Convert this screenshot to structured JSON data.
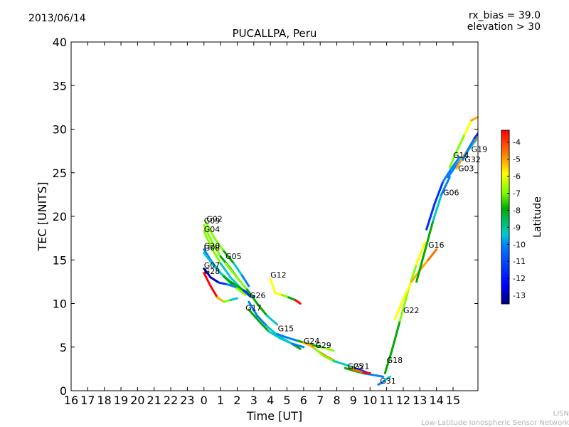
{
  "header": {
    "date": "2013/06/14",
    "rx_bias": "rx_bias = 39.0",
    "elevation": "elevation > 30"
  },
  "footer": {
    "org_short": "LISN",
    "org_long": "Low-Latitude Ionospheric Sensor Network"
  },
  "colors": {
    "axes": "#000000",
    "colormap": [
      "#00007f",
      "#0000ff",
      "#007fff",
      "#00ffff",
      "#7fff7f",
      "#ffff00",
      "#ff7f00",
      "#ff0000",
      "#7f0000"
    ]
  },
  "chart_data": {
    "type": "line",
    "title": "PUCALLPA, Peru",
    "xlabel": "Time [UT]",
    "ylabel": "TEC [UNITS]",
    "xlim": [
      0,
      24.5
    ],
    "ylim": [
      0,
      40
    ],
    "xticks": [
      "16",
      "17",
      "18",
      "19",
      "20",
      "21",
      "22",
      "23",
      "0",
      "1",
      "2",
      "3",
      "4",
      "5",
      "6",
      "7",
      "8",
      "9",
      "10",
      "11",
      "12",
      "13",
      "14",
      "15"
    ],
    "yticks": [
      0,
      5,
      10,
      15,
      20,
      25,
      30,
      35,
      40
    ],
    "colorbar": {
      "label": "Latitude",
      "range": [
        -13.5,
        -3.3
      ],
      "ticks": [
        -4,
        -5,
        -6,
        -7,
        -8,
        -9,
        -10,
        -11,
        -12,
        -13
      ]
    },
    "grid": false,
    "series": [
      {
        "name": "G02",
        "lat": [
          -8,
          -9,
          -10,
          -11
        ],
        "x": [
          8.1,
          8.6,
          9.2,
          9.8,
          10.3,
          10.7
        ],
        "y": [
          19.4,
          17.6,
          16.0,
          14.6,
          13.2,
          12.0
        ]
      },
      {
        "name": "G09",
        "lat": [
          -8,
          -9
        ],
        "x": [
          8.0,
          8.5,
          9.0,
          9.6,
          10.2
        ],
        "y": [
          19.0,
          17.0,
          15.4,
          14.0,
          12.5
        ]
      },
      {
        "name": "G04",
        "lat": [
          -8,
          -10,
          -12
        ],
        "x": [
          8.0,
          8.4,
          9.0,
          9.6,
          10.3,
          10.8
        ],
        "y": [
          18.3,
          16.6,
          14.6,
          13.0,
          11.6,
          10.8
        ]
      },
      {
        "name": "G20",
        "lat": [
          -11,
          -10,
          -9,
          -12
        ],
        "x": [
          8.0,
          8.5,
          9.0,
          9.6,
          10.4,
          11.0
        ],
        "y": [
          16.2,
          14.7,
          13.5,
          12.5,
          11.5,
          10.8
        ]
      },
      {
        "name": "G08",
        "lat": [
          -10,
          -9,
          -8
        ],
        "x": [
          8.0,
          8.6,
          9.2,
          9.8,
          10.5
        ],
        "y": [
          15.8,
          14.3,
          13.1,
          12.0,
          11.0
        ]
      },
      {
        "name": "G05",
        "lat": [
          -8,
          -9,
          -10
        ],
        "x": [
          9.3,
          9.9,
          10.6,
          11.2,
          11.8,
          12.4
        ],
        "y": [
          14.6,
          13.2,
          11.6,
          10.0,
          8.6,
          7.6
        ]
      },
      {
        "name": "G07",
        "lat": [
          -13,
          -12,
          -11
        ],
        "x": [
          8.0,
          8.4,
          8.9,
          9.4,
          9.9
        ],
        "y": [
          14.0,
          13.0,
          12.4,
          12.2,
          11.9
        ]
      },
      {
        "name": "G28",
        "lat": [
          -4,
          -6,
          -8,
          -10
        ],
        "x": [
          8.0,
          8.4,
          8.8,
          9.2,
          9.6,
          10.0
        ],
        "y": [
          13.5,
          12.0,
          10.7,
          10.2,
          10.4,
          10.6
        ]
      },
      {
        "name": "G12",
        "lat": [
          -7,
          -8,
          -9,
          -4
        ],
        "x": [
          12.0,
          12.3,
          12.7,
          13.1,
          13.5,
          13.8
        ],
        "y": [
          12.8,
          11.2,
          11.0,
          10.7,
          10.4,
          10.0
        ]
      },
      {
        "name": "G26",
        "lat": [
          -11,
          -10,
          -9
        ],
        "x": [
          10.7,
          11.2,
          11.8,
          12.4,
          13.1,
          13.8
        ],
        "y": [
          10.2,
          8.6,
          7.4,
          6.4,
          5.6,
          4.8
        ]
      },
      {
        "name": "G17",
        "lat": [
          -9,
          -10,
          -11
        ],
        "x": [
          10.7,
          11.3,
          11.9,
          12.6,
          13.3,
          14.0
        ],
        "y": [
          9.3,
          8.0,
          6.8,
          6.0,
          5.4,
          5.0
        ]
      },
      {
        "name": "G15",
        "lat": [
          -11,
          -9,
          -8
        ],
        "x": [
          12.4,
          13.0,
          13.7,
          14.4,
          15.1,
          15.8
        ],
        "y": [
          6.5,
          6.1,
          5.7,
          5.3,
          5.0,
          4.6
        ]
      },
      {
        "name": "G24",
        "lat": [
          -6,
          -5,
          -7
        ],
        "x": [
          14.0,
          14.4,
          14.9,
          15.4,
          15.9,
          16.4
        ],
        "y": [
          5.5,
          5.2,
          4.5,
          3.9,
          3.4,
          3.0
        ]
      },
      {
        "name": "G29",
        "lat": [
          -8,
          -10,
          -12
        ],
        "x": [
          14.7,
          15.2,
          15.8,
          16.5,
          17.2,
          17.8
        ],
        "y": [
          4.8,
          4.0,
          3.4,
          3.0,
          2.5,
          2.1
        ]
      },
      {
        "name": "G25",
        "lat": [
          -9,
          -11
        ],
        "x": [
          16.5,
          17.0,
          17.6,
          18.2,
          18.8
        ],
        "y": [
          2.6,
          2.3,
          2.0,
          1.8,
          1.6
        ]
      },
      {
        "name": "G21",
        "lat": [
          -5,
          -4
        ],
        "x": [
          16.8,
          17.2,
          17.6,
          18.0
        ],
        "y": [
          2.6,
          2.3,
          2.1,
          2.0
        ]
      },
      {
        "name": "G31",
        "lat": [
          -11,
          -10
        ],
        "x": [
          18.5,
          18.7,
          18.9,
          19.2
        ],
        "y": [
          0.7,
          0.9,
          1.2,
          1.6
        ]
      },
      {
        "name": "G18",
        "lat": [
          -9,
          -8,
          -7
        ],
        "x": [
          18.9,
          19.3,
          19.8,
          20.3,
          20.8,
          21.3
        ],
        "y": [
          2.0,
          4.5,
          8.0,
          11.5,
          14.5,
          17.0
        ]
      },
      {
        "name": "G22",
        "lat": [
          -7,
          -6,
          -5
        ],
        "x": [
          19.5,
          20.0,
          20.5,
          21.0,
          21.5,
          22.0
        ],
        "y": [
          8.2,
          10.5,
          12.5,
          13.8,
          15.0,
          16.2
        ]
      },
      {
        "name": "G16",
        "lat": [
          -9,
          -10,
          -11
        ],
        "x": [
          20.8,
          21.3,
          21.8,
          22.3,
          22.8
        ],
        "y": [
          12.5,
          16.0,
          19.5,
          22.5,
          24.5
        ]
      },
      {
        "name": "G06",
        "lat": [
          -12,
          -11
        ],
        "x": [
          21.4,
          21.9,
          22.4,
          22.9,
          23.4
        ],
        "y": [
          18.5,
          21.5,
          24.0,
          25.5,
          26.8
        ]
      },
      {
        "name": "G03",
        "lat": [
          -11,
          -10
        ],
        "x": [
          22.7,
          23.1,
          23.6,
          24.0,
          24.4
        ],
        "y": [
          24.5,
          25.6,
          26.8,
          27.8,
          28.8
        ]
      },
      {
        "name": "G32",
        "lat": [
          -6,
          -5
        ],
        "x": [
          23.2,
          23.6,
          24.0,
          24.4
        ],
        "y": [
          25.5,
          26.8,
          28.0,
          29.0
        ]
      },
      {
        "name": "G14",
        "lat": [
          -8,
          -7,
          -6
        ],
        "x": [
          22.8,
          23.2,
          23.7,
          24.1,
          24.5
        ],
        "y": [
          25.6,
          27.4,
          29.4,
          31.0,
          31.4
        ]
      },
      {
        "name": "G19",
        "lat": [
          -11,
          -12
        ],
        "x": [
          23.6,
          24.0,
          24.3,
          24.5
        ],
        "y": [
          26.5,
          28.0,
          29.0,
          29.5
        ]
      }
    ],
    "labels": [
      {
        "text": "G02",
        "x": 8.15,
        "y": 19.4
      },
      {
        "text": "G09",
        "x": 8.0,
        "y": 19.2
      },
      {
        "text": "G04",
        "x": 8.0,
        "y": 18.2
      },
      {
        "text": "G20",
        "x": 8.0,
        "y": 16.3
      },
      {
        "text": "G08",
        "x": 8.0,
        "y": 16.1
      },
      {
        "text": "G05",
        "x": 9.3,
        "y": 15.1
      },
      {
        "text": "G07",
        "x": 8.0,
        "y": 14.1
      },
      {
        "text": "G28",
        "x": 8.0,
        "y": 13.4
      },
      {
        "text": "G12",
        "x": 12.0,
        "y": 13.0
      },
      {
        "text": "G26",
        "x": 10.75,
        "y": 10.6
      },
      {
        "text": "G17",
        "x": 10.5,
        "y": 9.2
      },
      {
        "text": "G15",
        "x": 12.45,
        "y": 6.8
      },
      {
        "text": "G24",
        "x": 14.0,
        "y": 5.4
      },
      {
        "text": "G29",
        "x": 14.7,
        "y": 4.9
      },
      {
        "text": "G25",
        "x": 16.65,
        "y": 2.5
      },
      {
        "text": "G21",
        "x": 17.0,
        "y": 2.5
      },
      {
        "text": "G31",
        "x": 18.6,
        "y": 0.8
      },
      {
        "text": "G18",
        "x": 19.0,
        "y": 3.2
      },
      {
        "text": "G22",
        "x": 20.0,
        "y": 8.9
      },
      {
        "text": "G16",
        "x": 21.5,
        "y": 16.4
      },
      {
        "text": "G06",
        "x": 22.4,
        "y": 22.4
      },
      {
        "text": "G03",
        "x": 23.3,
        "y": 25.2
      },
      {
        "text": "G32",
        "x": 23.7,
        "y": 26.2
      },
      {
        "text": "G14",
        "x": 23.0,
        "y": 26.7
      },
      {
        "text": "G19",
        "x": 24.1,
        "y": 27.4
      }
    ]
  }
}
